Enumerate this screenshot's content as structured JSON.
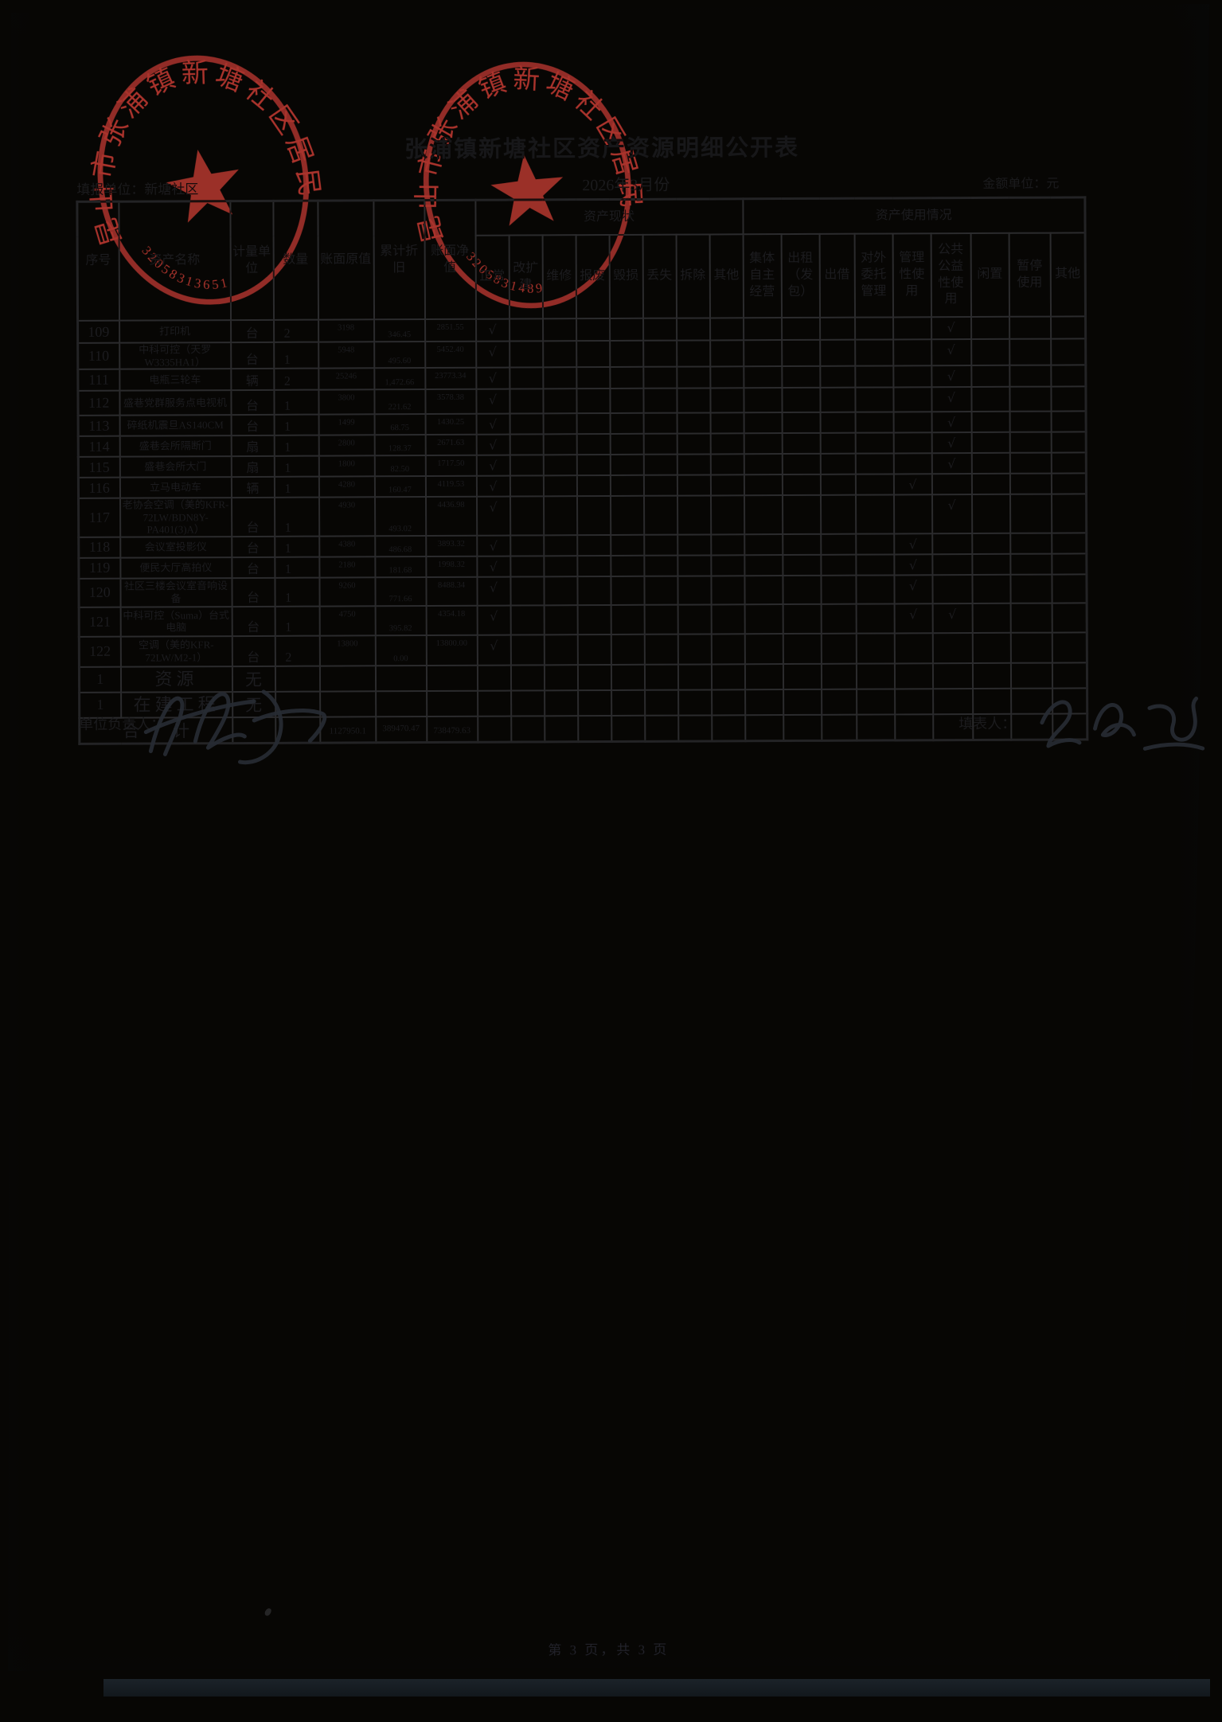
{
  "document": {
    "title": "张浦镇新塘社区资产资源明细公开表",
    "report_unit_label": "填报单位：",
    "report_unit": "新塘社区",
    "period": "2026年3月份",
    "amount_unit": "金额单位：元",
    "responsible_label": "单位负责人：",
    "responsible_signature": "陈军",
    "preparer_label": "填表人：",
    "preparer_signature": "姜丽娟",
    "page_footer": "第 3 页，共 3 页"
  },
  "stamps": [
    {
      "ring_text": "昆山市张浦镇新塘社区居民委员会",
      "code": "32058313651"
    },
    {
      "ring_text": "昆山市张浦镇新塘社区居民委员会",
      "code": "3205831489"
    }
  ],
  "table": {
    "base_columns": [
      "序号",
      "资产名称",
      "计量单位",
      "数量",
      "账面原值",
      "累计折旧",
      "账面净值"
    ],
    "status_group_label": "资产现状",
    "status_columns": [
      "正常",
      "改扩建",
      "维修",
      "报废",
      "毁损",
      "丢失",
      "拆除",
      "其他"
    ],
    "usage_group_label": "资产使用情况",
    "usage_columns": [
      "集体自主经营",
      "出租（发包）",
      "出借",
      "对外委托管理",
      "管理性使用",
      "公共公益性使用",
      "闲置",
      "暂停使用",
      "其他"
    ],
    "check_mark": "√",
    "rows": [
      {
        "no": "109",
        "name": "打印机",
        "unit": "台",
        "qty": "2",
        "orig": "3198",
        "dep": "346.45",
        "net": "2851.55",
        "status_checked": [
          "正常"
        ],
        "usage_checked": [
          "公共公益性使用"
        ]
      },
      {
        "no": "110",
        "name": "中科可控（天罗W3335HA1）",
        "unit": "台",
        "qty": "1",
        "orig": "5948",
        "dep": "495.60",
        "net": "5452.40",
        "status_checked": [
          "正常"
        ],
        "usage_checked": [
          "公共公益性使用"
        ]
      },
      {
        "no": "111",
        "name": "电瓶三轮车",
        "unit": "辆",
        "qty": "2",
        "orig": "25246",
        "dep": "1,472.66",
        "net": "23773.34",
        "status_checked": [
          "正常"
        ],
        "usage_checked": [
          "公共公益性使用"
        ]
      },
      {
        "no": "112",
        "name": "盛巷党群服务点电视机",
        "unit": "台",
        "qty": "1",
        "orig": "3800",
        "dep": "221.62",
        "net": "3578.38",
        "status_checked": [
          "正常"
        ],
        "usage_checked": [
          "公共公益性使用"
        ]
      },
      {
        "no": "113",
        "name": "碎纸机震旦AS140CM",
        "unit": "台",
        "qty": "1",
        "orig": "1499",
        "dep": "68.75",
        "net": "1430.25",
        "status_checked": [
          "正常"
        ],
        "usage_checked": [
          "公共公益性使用"
        ]
      },
      {
        "no": "114",
        "name": "盛巷会所隔断门",
        "unit": "扇",
        "qty": "1",
        "orig": "2800",
        "dep": "128.37",
        "net": "2671.63",
        "status_checked": [
          "正常"
        ],
        "usage_checked": [
          "公共公益性使用"
        ]
      },
      {
        "no": "115",
        "name": "盛巷会所大门",
        "unit": "扇",
        "qty": "1",
        "orig": "1800",
        "dep": "82.50",
        "net": "1717.50",
        "status_checked": [
          "正常"
        ],
        "usage_checked": [
          "公共公益性使用"
        ]
      },
      {
        "no": "116",
        "name": "立马电动车",
        "unit": "辆",
        "qty": "1",
        "orig": "4280",
        "dep": "160.47",
        "net": "4119.53",
        "status_checked": [
          "正常"
        ],
        "usage_checked": [
          "管理性使用"
        ]
      },
      {
        "no": "117",
        "name": "老协会空调（美的KFR-72LW/BDN8Y-PA401(3)A）",
        "unit": "台",
        "qty": "1",
        "orig": "4930",
        "dep": "493.02",
        "net": "4436.98",
        "status_checked": [
          "正常"
        ],
        "usage_checked": [
          "公共公益性使用"
        ]
      },
      {
        "no": "118",
        "name": "会议室投影仪",
        "unit": "台",
        "qty": "1",
        "orig": "4380",
        "dep": "486.68",
        "net": "3893.32",
        "status_checked": [
          "正常"
        ],
        "usage_checked": [
          "管理性使用"
        ]
      },
      {
        "no": "119",
        "name": "便民大厅高拍仪",
        "unit": "台",
        "qty": "1",
        "orig": "2180",
        "dep": "181.68",
        "net": "1998.32",
        "status_checked": [
          "正常"
        ],
        "usage_checked": [
          "管理性使用"
        ]
      },
      {
        "no": "120",
        "name": "社区三楼会议室音响设备",
        "unit": "台",
        "qty": "1",
        "orig": "9260",
        "dep": "771.66",
        "net": "8488.34",
        "status_checked": [
          "正常"
        ],
        "usage_checked": [
          "管理性使用"
        ]
      },
      {
        "no": "121",
        "name": "中科可控（Suma）台式电脑",
        "unit": "台",
        "qty": "1",
        "orig": "4750",
        "dep": "395.82",
        "net": "4354.18",
        "status_checked": [
          "正常"
        ],
        "usage_checked": [
          "管理性使用",
          "公共公益性使用"
        ]
      },
      {
        "no": "122",
        "name": "空调（美的KFR-72LW/M2-1）",
        "unit": "台",
        "qty": "2",
        "orig": "13800",
        "dep": "0.00",
        "net": "13800.00",
        "status_checked": [
          "正常"
        ],
        "usage_checked": []
      }
    ],
    "summary_rows": [
      {
        "no": "1",
        "name": "资源",
        "unit": "无"
      },
      {
        "no": "1",
        "name": "在建工程",
        "unit": "无"
      }
    ],
    "total_row": {
      "label": "合　　计",
      "orig": "1127950.1",
      "dep": "389470.47",
      "net": "738479.63"
    }
  }
}
